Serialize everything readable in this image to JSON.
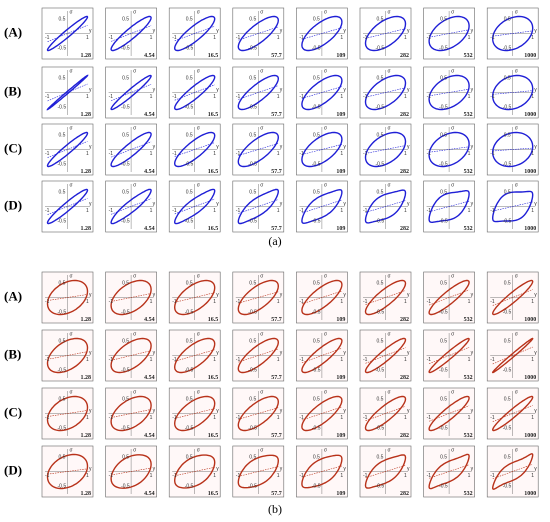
{
  "figure": {
    "panels": [
      {
        "caption": "(a)",
        "color": "#1f1fd6"
      },
      {
        "caption": "(b)",
        "color": "#b8321a"
      }
    ],
    "rows": [
      "(A)",
      "(B)",
      "(C)",
      "(D)"
    ],
    "columns": [
      "1.28",
      "4.54",
      "16.5",
      "57.7",
      "109",
      "282",
      "532",
      "1000"
    ],
    "axis": {
      "y_label": "σ",
      "x_label": "γ",
      "y_pos": "0.5",
      "y_neg": "-0.5",
      "x_pos": "1",
      "x_neg": "-1"
    }
  }
}
